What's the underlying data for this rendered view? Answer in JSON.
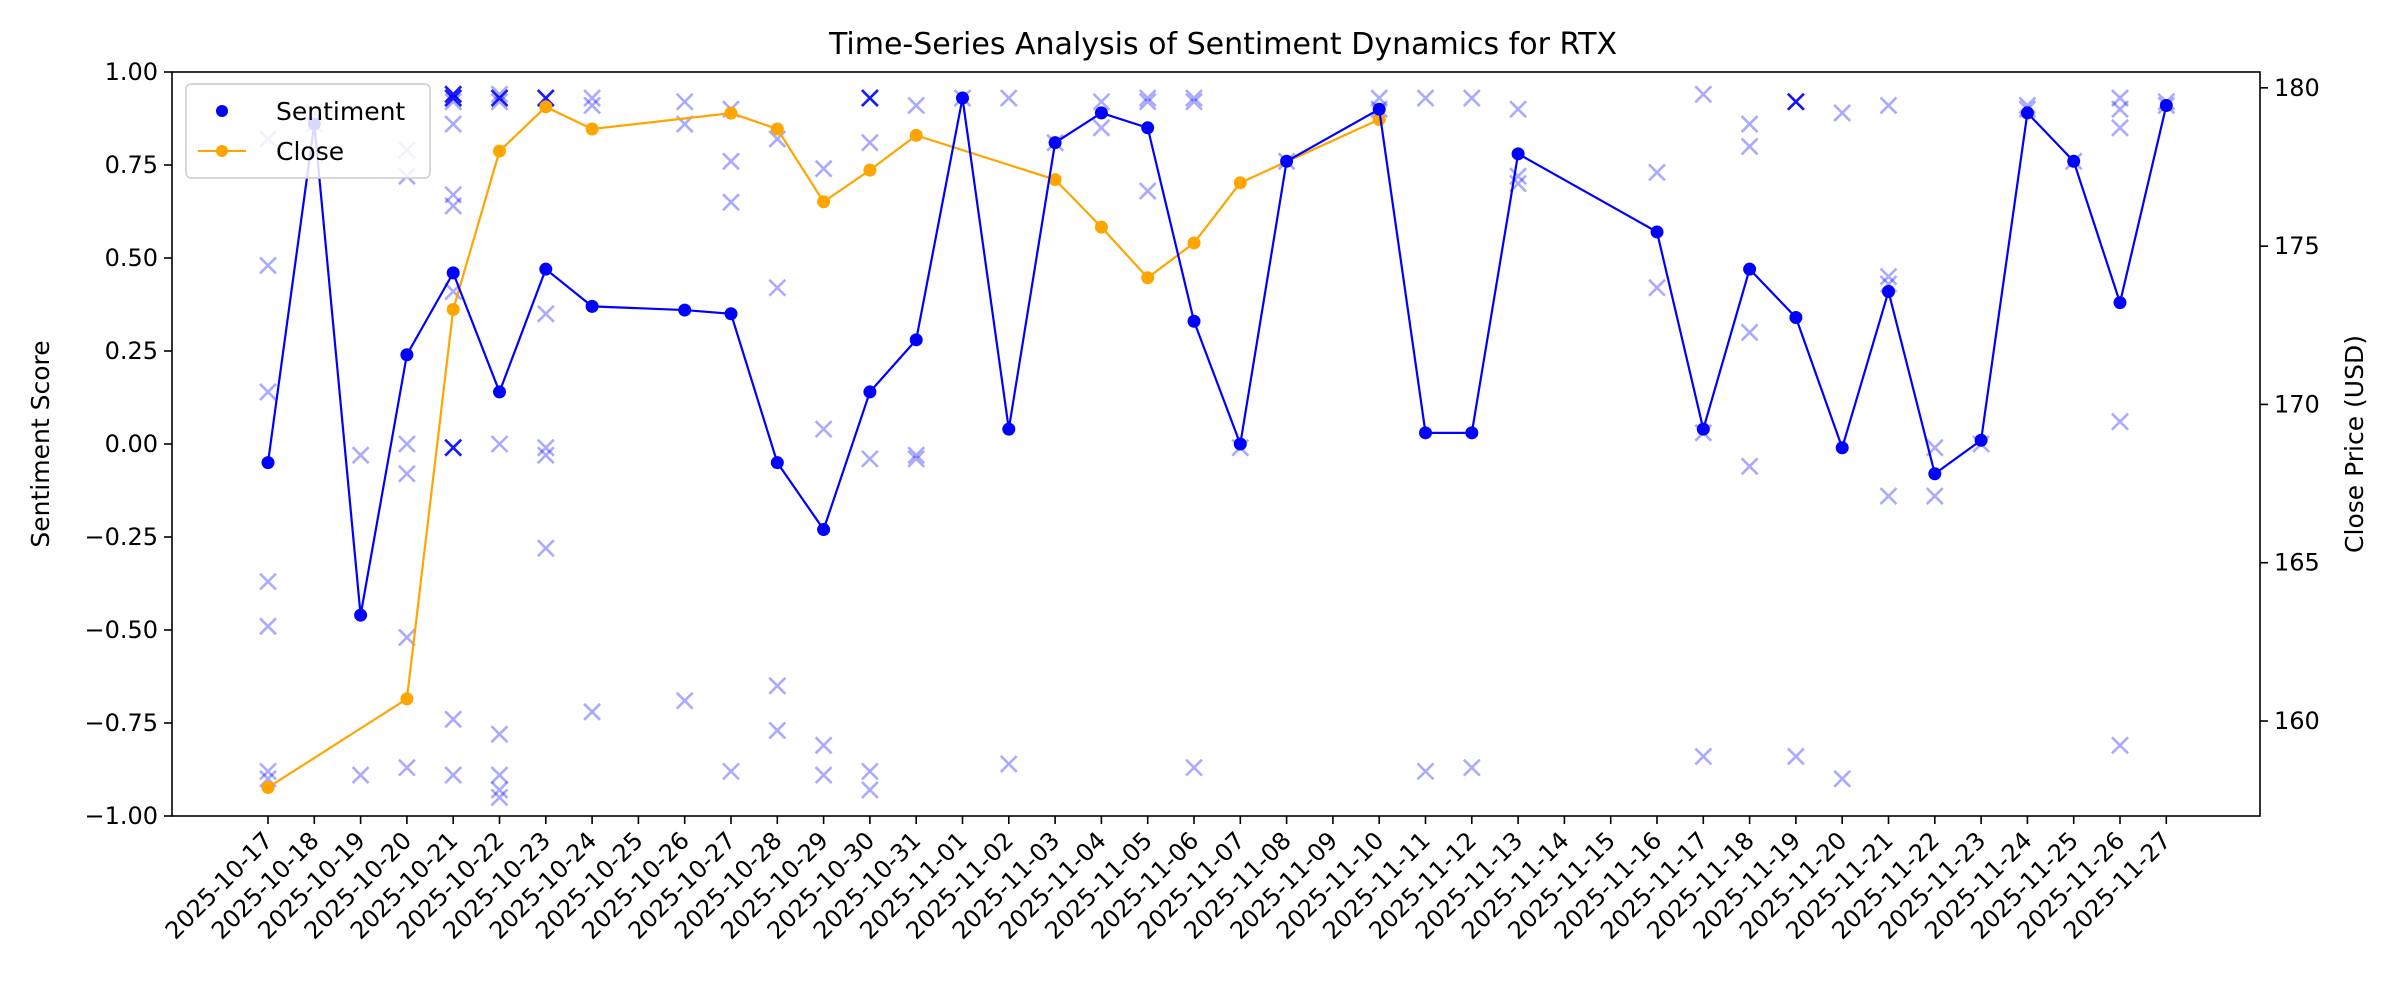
{
  "chart_data": {
    "type": "line",
    "title": "Time-Series Analysis of Sentiment Dynamics for RTX",
    "xlabel": "",
    "ylabel": "Sentiment Score",
    "y2label": "Close Price (USD)",
    "ylim": [
      -1.0,
      1.0
    ],
    "y2lim": [
      157,
      180.5
    ],
    "yticks": [
      "1.00",
      "0.75",
      "0.50",
      "0.25",
      "0.00",
      "−0.25",
      "−0.50",
      "−0.75",
      "−1.00"
    ],
    "y2ticks": [
      "180",
      "175",
      "170",
      "165",
      "160"
    ],
    "grid": false,
    "legend_position": "top-left",
    "colors": {
      "sentiment": "#0000ff",
      "close": "#ffa500",
      "scatter": "#0000ff"
    },
    "categories": [
      "2025-10-17",
      "2025-10-18",
      "2025-10-19",
      "2025-10-20",
      "2025-10-21",
      "2025-10-22",
      "2025-10-23",
      "2025-10-24",
      "2025-10-25",
      "2025-10-26",
      "2025-10-27",
      "2025-10-28",
      "2025-10-29",
      "2025-10-30",
      "2025-10-31",
      "2025-11-01",
      "2025-11-02",
      "2025-11-03",
      "2025-11-04",
      "2025-11-05",
      "2025-11-06",
      "2025-11-07",
      "2025-11-08",
      "2025-11-09",
      "2025-11-10",
      "2025-11-11",
      "2025-11-12",
      "2025-11-13",
      "2025-11-14",
      "2025-11-15",
      "2025-11-16",
      "2025-11-17",
      "2025-11-18",
      "2025-11-19",
      "2025-11-20",
      "2025-11-21",
      "2025-11-22",
      "2025-11-23",
      "2025-11-24",
      "2025-11-25",
      "2025-11-26",
      "2025-11-27"
    ],
    "series": [
      {
        "name": "Sentiment",
        "axis": "left",
        "points": [
          [
            "2025-10-17",
            -0.05
          ],
          [
            "2025-10-18",
            0.86
          ],
          [
            "2025-10-19",
            -0.46
          ],
          [
            "2025-10-20",
            0.24
          ],
          [
            "2025-10-21",
            0.46
          ],
          [
            "2025-10-22",
            0.14
          ],
          [
            "2025-10-23",
            0.47
          ],
          [
            "2025-10-24",
            0.37
          ],
          [
            "2025-10-26",
            0.36
          ],
          [
            "2025-10-27",
            0.35
          ],
          [
            "2025-10-28",
            -0.05
          ],
          [
            "2025-10-29",
            -0.23
          ],
          [
            "2025-10-30",
            0.14
          ],
          [
            "2025-10-31",
            0.28
          ],
          [
            "2025-11-01",
            0.93
          ],
          [
            "2025-11-02",
            0.04
          ],
          [
            "2025-11-03",
            0.81
          ],
          [
            "2025-11-04",
            0.89
          ],
          [
            "2025-11-05",
            0.85
          ],
          [
            "2025-11-06",
            0.33
          ],
          [
            "2025-11-07",
            0.0
          ],
          [
            "2025-11-08",
            0.76
          ],
          [
            "2025-11-10",
            0.9
          ],
          [
            "2025-11-11",
            0.03
          ],
          [
            "2025-11-12",
            0.03
          ],
          [
            "2025-11-13",
            0.78
          ],
          [
            "2025-11-16",
            0.57
          ],
          [
            "2025-11-17",
            0.04
          ],
          [
            "2025-11-18",
            0.47
          ],
          [
            "2025-11-19",
            0.34
          ],
          [
            "2025-11-20",
            -0.01
          ],
          [
            "2025-11-21",
            0.41
          ],
          [
            "2025-11-22",
            -0.08
          ],
          [
            "2025-11-23",
            0.01
          ],
          [
            "2025-11-24",
            0.89
          ],
          [
            "2025-11-25",
            0.76
          ],
          [
            "2025-11-26",
            0.38
          ],
          [
            "2025-11-27",
            0.91
          ]
        ]
      },
      {
        "name": "Close",
        "axis": "right",
        "points": [
          [
            "2025-10-17",
            157.9
          ],
          [
            "2025-10-20",
            160.7
          ],
          [
            "2025-10-21",
            173.0
          ],
          [
            "2025-10-22",
            178.0
          ],
          [
            "2025-10-23",
            179.4
          ],
          [
            "2025-10-24",
            178.7
          ],
          [
            "2025-10-27",
            179.2
          ],
          [
            "2025-10-28",
            178.7
          ],
          [
            "2025-10-29",
            176.4
          ],
          [
            "2025-10-30",
            177.4
          ],
          [
            "2025-10-31",
            178.5
          ],
          [
            "2025-11-03",
            177.1
          ],
          [
            "2025-11-04",
            175.6
          ],
          [
            "2025-11-05",
            174.0
          ],
          [
            "2025-11-06",
            175.1
          ],
          [
            "2025-11-07",
            177.0
          ],
          [
            "2025-11-10",
            179.0
          ]
        ]
      }
    ],
    "scatter_x": [
      [
        "2025-10-17",
        [
          0.82,
          0.48,
          0.14,
          -0.37,
          -0.49,
          -0.88,
          -0.9
        ]
      ],
      [
        "2025-10-18",
        [
          0.89,
          0.86
        ]
      ],
      [
        "2025-10-19",
        [
          -0.03,
          -0.89
        ]
      ],
      [
        "2025-10-20",
        [
          0.79,
          0.72,
          0.0,
          -0.08,
          -0.52,
          -0.87
        ]
      ],
      [
        "2025-10-21",
        [
          0.94,
          0.93,
          0.92,
          0.86,
          0.67,
          0.64,
          0.41,
          -0.01,
          -0.74,
          -0.89
        ]
      ],
      [
        "2025-10-22",
        [
          0.94,
          0.93,
          0.92,
          0.0,
          -0.78,
          -0.89,
          -0.93,
          -0.95
        ]
      ],
      [
        "2025-10-23",
        [
          0.93,
          0.35,
          -0.01,
          -0.03,
          -0.28
        ]
      ],
      [
        "2025-10-24",
        [
          0.93,
          0.91,
          -0.72
        ]
      ],
      [
        "2025-10-26",
        [
          0.92,
          0.86,
          -0.69
        ]
      ],
      [
        "2025-10-27",
        [
          0.9,
          0.76,
          0.65,
          -0.88
        ]
      ],
      [
        "2025-10-28",
        [
          0.82,
          0.42,
          -0.65,
          -0.77
        ]
      ],
      [
        "2025-10-29",
        [
          0.74,
          0.04,
          -0.81,
          -0.89
        ]
      ],
      [
        "2025-10-30",
        [
          0.93,
          0.81,
          -0.04,
          -0.88,
          -0.93
        ]
      ],
      [
        "2025-10-31",
        [
          0.91,
          -0.03,
          -0.04
        ]
      ],
      [
        "2025-11-01",
        [
          0.93
        ]
      ],
      [
        "2025-11-02",
        [
          0.93,
          -0.86
        ]
      ],
      [
        "2025-11-03",
        [
          0.81
        ]
      ],
      [
        "2025-11-04",
        [
          0.92,
          0.85
        ]
      ],
      [
        "2025-11-05",
        [
          0.93,
          0.92,
          0.68
        ]
      ],
      [
        "2025-11-06",
        [
          0.93,
          0.92,
          -0.87
        ]
      ],
      [
        "2025-11-07",
        [
          -0.01
        ]
      ],
      [
        "2025-11-08",
        [
          0.76
        ]
      ],
      [
        "2025-11-10",
        [
          0.93,
          0.9
        ]
      ],
      [
        "2025-11-11",
        [
          0.93,
          -0.88
        ]
      ],
      [
        "2025-11-12",
        [
          0.93,
          -0.87
        ]
      ],
      [
        "2025-11-13",
        [
          0.9,
          0.72,
          0.7
        ]
      ],
      [
        "2025-11-16",
        [
          0.73,
          0.42
        ]
      ],
      [
        "2025-11-17",
        [
          0.94,
          0.03,
          -0.84
        ]
      ],
      [
        "2025-11-18",
        [
          0.86,
          0.8,
          0.3,
          -0.06
        ]
      ],
      [
        "2025-11-19",
        [
          0.92,
          0.92,
          -0.84
        ]
      ],
      [
        "2025-11-20",
        [
          0.89,
          -0.9
        ]
      ],
      [
        "2025-11-21",
        [
          0.91,
          0.45,
          0.43,
          -0.14
        ]
      ],
      [
        "2025-11-22",
        [
          -0.01,
          -0.14
        ]
      ],
      [
        "2025-11-23",
        [
          0.0
        ]
      ],
      [
        "2025-11-24",
        [
          0.91,
          0.9
        ]
      ],
      [
        "2025-11-25",
        [
          0.76
        ]
      ],
      [
        "2025-11-26",
        [
          0.93,
          0.9,
          0.85,
          0.06,
          -0.81
        ]
      ],
      [
        "2025-11-27",
        [
          0.92,
          0.91
        ]
      ]
    ],
    "scatter_opaque": [
      [
        "2025-10-21",
        -0.01
      ],
      [
        "2025-10-21",
        0.93
      ],
      [
        "2025-10-21",
        0.94
      ],
      [
        "2025-10-22",
        0.93
      ],
      [
        "2025-10-23",
        0.93
      ],
      [
        "2025-10-30",
        0.93
      ],
      [
        "2025-11-19",
        0.92
      ]
    ]
  }
}
